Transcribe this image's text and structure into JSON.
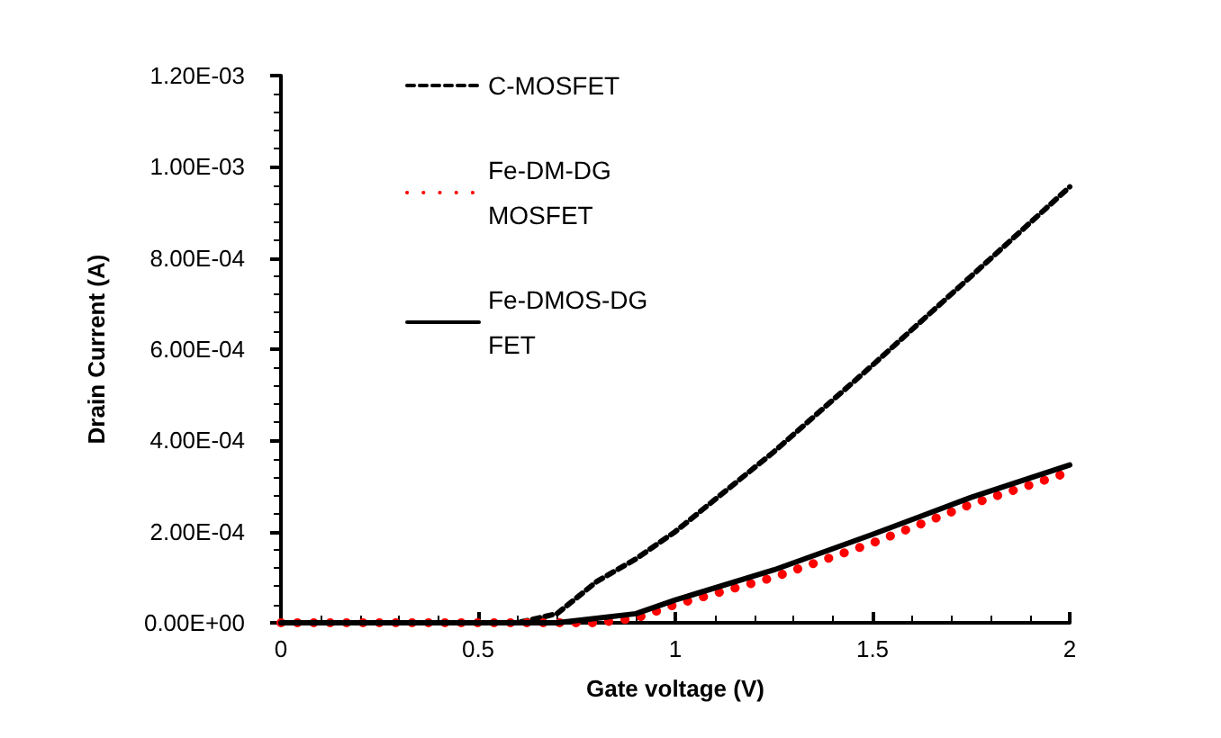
{
  "chart_data": {
    "type": "line",
    "xlabel": "Gate voltage (V)",
    "ylabel": "Drain Current (A)",
    "xlim": [
      0,
      2
    ],
    "xticks": [
      0,
      0.5,
      1,
      1.5,
      2
    ],
    "ylim": [
      0,
      0.0012
    ],
    "yticks": [
      {
        "value": 0,
        "label": "0.00E+00"
      },
      {
        "value": 0.0002,
        "label": "2.00E-04"
      },
      {
        "value": 0.0004,
        "label": "4.00E-04"
      },
      {
        "value": 0.0006,
        "label": "6.00E-04"
      },
      {
        "value": 0.0008,
        "label": "8.00E-04"
      },
      {
        "value": 0.001,
        "label": "1.00E-03"
      },
      {
        "value": 0.0012,
        "label": "1.20E-03"
      }
    ],
    "grid": false,
    "legend": "top left",
    "marker": "none",
    "series": [
      {
        "name": "C-MOSFET",
        "color": "#000000",
        "line_style": "dashed",
        "x": [
          0,
          0.5,
          0.6,
          0.7,
          0.8,
          0.9,
          1,
          1.25,
          1.5,
          1.75,
          2
        ],
        "values": [
          0,
          0,
          0,
          2e-05,
          9e-05,
          0.00014,
          0.0002,
          0.000375,
          0.000565,
          0.00076,
          0.000956
        ]
      },
      {
        "name": "Fe-DM-DG MOSFET",
        "color": "#ff0000",
        "line_style": "dotted",
        "x": [
          0,
          0.5,
          0.7,
          0.8,
          0.9,
          1,
          1.25,
          1.5,
          1.75,
          2
        ],
        "values": [
          0,
          0,
          0,
          0,
          1e-05,
          4e-05,
          0.0001,
          0.000175,
          0.00026,
          0.000331
        ]
      },
      {
        "name": "Fe-DMOS-DG FET",
        "color": "#000000",
        "line_style": "solid",
        "x": [
          0,
          0.5,
          0.7,
          0.8,
          0.9,
          1,
          1.25,
          1.5,
          1.75,
          2
        ],
        "values": [
          0,
          0,
          0,
          1e-05,
          2e-05,
          5e-05,
          0.000116,
          0.000194,
          0.000275,
          0.000346
        ]
      }
    ]
  }
}
